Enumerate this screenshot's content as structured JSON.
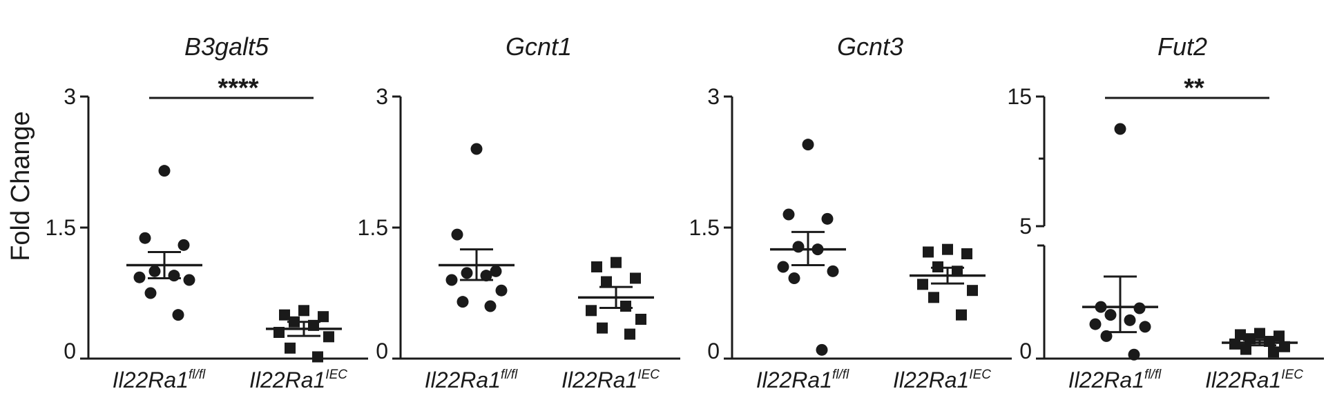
{
  "ylabel": "Fold Change",
  "color": "#1a1a1a",
  "chart_data": [
    {
      "type": "scatter",
      "title": "B3galt5",
      "ylim": [
        0,
        3
      ],
      "yticks": [
        "0",
        "1.5",
        "3"
      ],
      "categories": [
        {
          "base": "Il22Ra1",
          "sup": "fl/fl"
        },
        {
          "base": "Il22Ra1",
          "sup": "IEC"
        }
      ],
      "groups": [
        {
          "marker": "circle",
          "values": [
            2.15,
            1.38,
            1.3,
            1.0,
            0.95,
            0.93,
            0.9,
            0.75,
            0.5
          ],
          "mean": 1.07,
          "sem_upper": 1.22,
          "sem_lower": 0.92
        },
        {
          "marker": "square",
          "values": [
            0.55,
            0.5,
            0.48,
            0.42,
            0.38,
            0.3,
            0.25,
            0.12,
            0.02
          ],
          "mean": 0.34,
          "sem_upper": 0.42,
          "sem_lower": 0.26
        }
      ],
      "significance": "****"
    },
    {
      "type": "scatter",
      "title": "Gcnt1",
      "ylim": [
        0,
        3
      ],
      "yticks": [
        "0",
        "1.5",
        "3"
      ],
      "categories": [
        {
          "base": "Il22Ra1",
          "sup": "fl/fl"
        },
        {
          "base": "Il22Ra1",
          "sup": "IEC"
        }
      ],
      "groups": [
        {
          "marker": "circle",
          "values": [
            2.4,
            1.42,
            1.0,
            0.98,
            0.95,
            0.9,
            0.78,
            0.65,
            0.6
          ],
          "mean": 1.07,
          "sem_upper": 1.25,
          "sem_lower": 0.9
        },
        {
          "marker": "square",
          "values": [
            1.1,
            1.05,
            0.92,
            0.88,
            0.6,
            0.55,
            0.45,
            0.35,
            0.28
          ],
          "mean": 0.7,
          "sem_upper": 0.82,
          "sem_lower": 0.58
        }
      ],
      "significance": ""
    },
    {
      "type": "scatter",
      "title": "Gcnt3",
      "ylim": [
        0,
        3
      ],
      "yticks": [
        "0",
        "1.5",
        "3"
      ],
      "categories": [
        {
          "base": "Il22Ra1",
          "sup": "fl/fl"
        },
        {
          "base": "Il22Ra1",
          "sup": "IEC"
        }
      ],
      "groups": [
        {
          "marker": "circle",
          "values": [
            2.45,
            1.65,
            1.6,
            1.28,
            1.25,
            1.05,
            1.0,
            0.92,
            0.1
          ],
          "mean": 1.25,
          "sem_upper": 1.45,
          "sem_lower": 1.07
        },
        {
          "marker": "square",
          "values": [
            1.25,
            1.22,
            1.2,
            1.05,
            1.0,
            0.85,
            0.78,
            0.7,
            0.5
          ],
          "mean": 0.95,
          "sem_upper": 1.04,
          "sem_lower": 0.86
        }
      ],
      "significance": ""
    },
    {
      "type": "scatter",
      "title": "Fut2",
      "axis_break": true,
      "yticks": [
        "0",
        "5",
        "15"
      ],
      "categories": [
        {
          "base": "Il22Ra1",
          "sup": "fl/fl"
        },
        {
          "base": "Il22Ra1",
          "sup": "IEC"
        }
      ],
      "groups": [
        {
          "marker": "circle",
          "values": [
            12.5,
            1.95,
            1.9,
            1.65,
            1.45,
            1.3,
            1.2,
            0.85,
            0.15
          ],
          "mean": 1.95,
          "sem_upper": 3.1,
          "sem_lower": 1.0
        },
        {
          "marker": "square",
          "values": [
            0.95,
            0.9,
            0.85,
            0.75,
            0.65,
            0.55,
            0.45,
            0.35,
            0.25
          ],
          "mean": 0.6,
          "sem_upper": 0.7,
          "sem_lower": 0.5
        }
      ],
      "significance": "**"
    }
  ]
}
